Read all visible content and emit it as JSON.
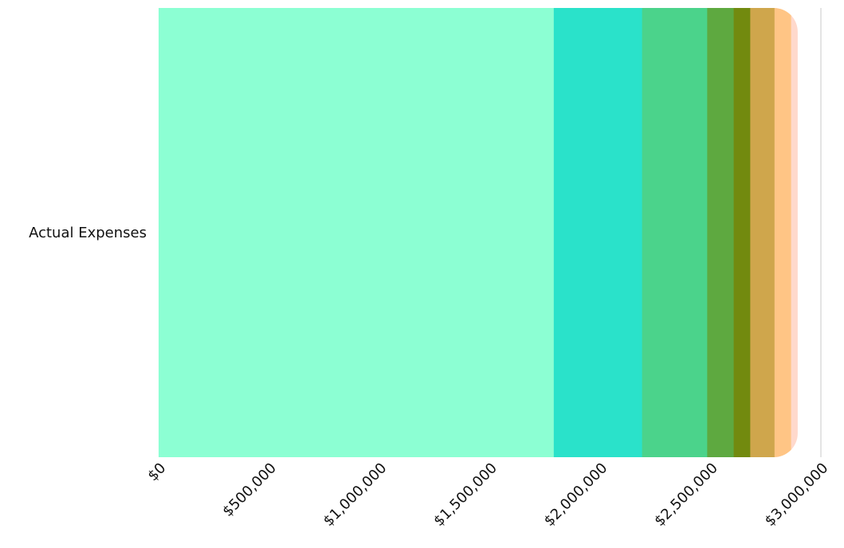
{
  "chart_data": {
    "type": "bar",
    "orientation": "horizontal",
    "stacked": true,
    "categories": [
      "Actual Expenses"
    ],
    "series": [
      {
        "values": [
          1790000
        ],
        "color": "#8CFFD3"
      },
      {
        "values": [
          400000
        ],
        "color": "#2AE2CA"
      },
      {
        "values": [
          295000
        ],
        "color": "#4BD38B"
      },
      {
        "values": [
          120000
        ],
        "color": "#5EA940"
      },
      {
        "values": [
          75000
        ],
        "color": "#728A0F"
      },
      {
        "values": [
          110000
        ],
        "color": "#CFA64C"
      },
      {
        "values": [
          75000
        ],
        "color": "#FFC585"
      },
      {
        "values": [
          30000
        ],
        "color": "#FFD9CC"
      }
    ],
    "x_ticks": [
      "$0",
      "$500,000",
      "$1,000,000",
      "$1,500,000",
      "$2,000,000",
      "$2,500,000",
      "$3,000,000"
    ],
    "xlim": [
      0,
      3000000
    ],
    "grid": false,
    "title": "",
    "xlabel": "",
    "ylabel": ""
  }
}
